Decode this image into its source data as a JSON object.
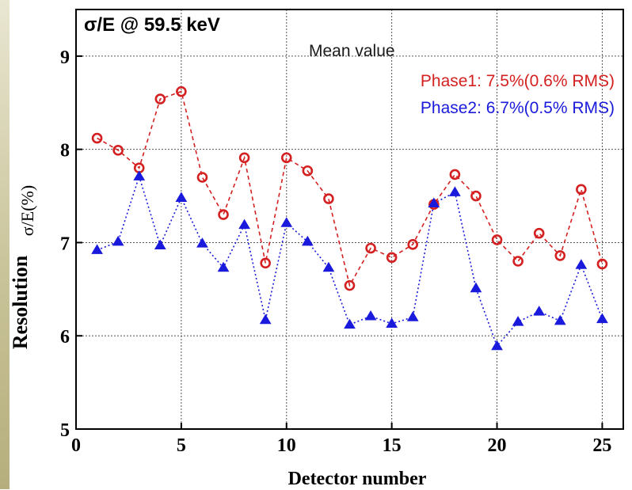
{
  "chart_data": {
    "type": "line",
    "annotation": "σ/E @ 59.5 keV",
    "xlabel": "Detector number",
    "ylabel_main": "Resolution",
    "ylabel_unit": "σ/E(%)",
    "xlim": [
      0,
      26
    ],
    "ylim": [
      5,
      9.5
    ],
    "xticks": [
      0,
      5,
      10,
      15,
      20,
      25
    ],
    "yticks": [
      5,
      6,
      7,
      8,
      9
    ],
    "grid": true,
    "legend_title": "Mean value",
    "legend_position": "top-right",
    "x": [
      1,
      2,
      3,
      4,
      5,
      6,
      7,
      8,
      9,
      10,
      11,
      12,
      13,
      14,
      15,
      16,
      17,
      18,
      19,
      20,
      21,
      22,
      23,
      24,
      25
    ],
    "series": [
      {
        "name": "Phase1: 7.5%(0.6% RMS)",
        "color": "#d42020",
        "marker": "circle",
        "line": "dashed",
        "values": [
          8.12,
          7.99,
          7.8,
          8.54,
          8.62,
          7.7,
          7.3,
          7.91,
          6.78,
          7.91,
          7.77,
          7.47,
          6.54,
          6.94,
          6.84,
          6.98,
          7.41,
          7.73,
          7.5,
          7.03,
          6.8,
          7.1,
          6.86,
          7.57,
          6.77
        ]
      },
      {
        "name": "Phase2: 6.7%(0.5% RMS)",
        "color": "#1a1adc",
        "marker": "triangle",
        "line": "dotted",
        "values": [
          6.92,
          7.01,
          7.71,
          6.97,
          7.48,
          6.99,
          6.73,
          7.19,
          6.17,
          7.21,
          7.01,
          6.73,
          6.12,
          6.21,
          6.13,
          6.2,
          7.42,
          7.54,
          6.51,
          5.89,
          6.15,
          6.26,
          6.16,
          6.76,
          6.18
        ]
      }
    ]
  }
}
